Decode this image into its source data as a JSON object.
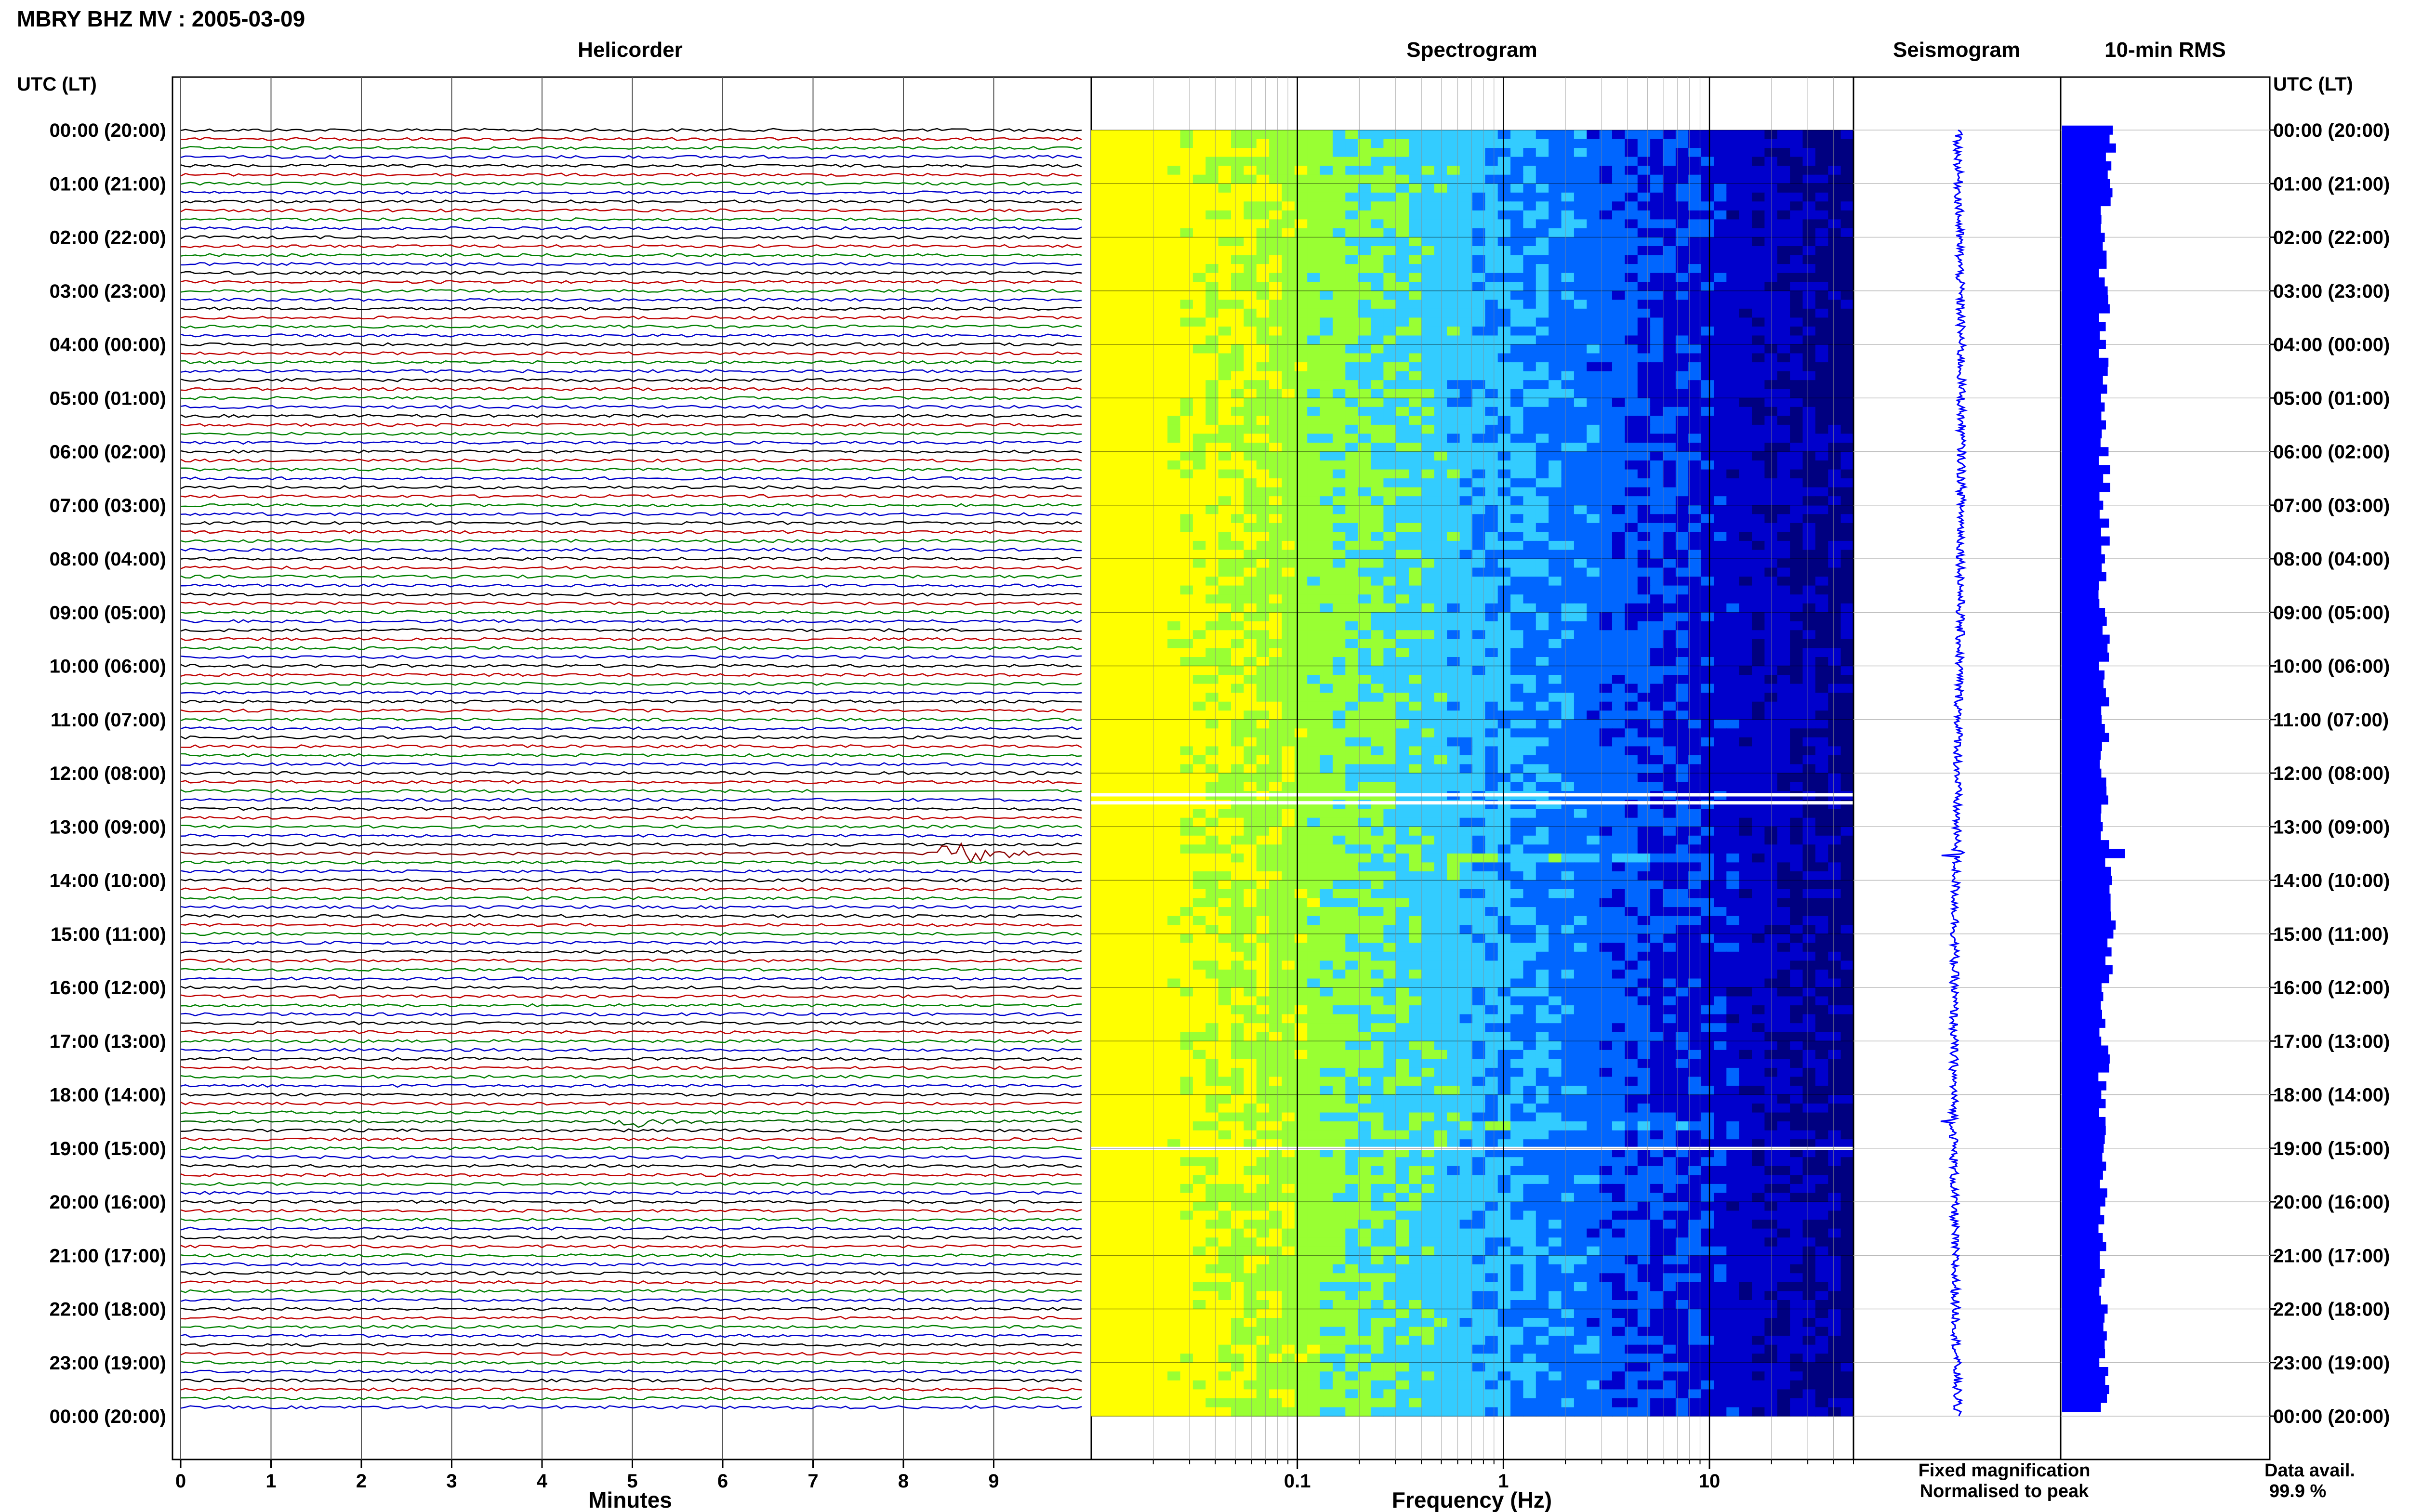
{
  "chart_data": {
    "type": "helicorder",
    "title": "MBRY BHZ MV : 2005-03-09",
    "left_axis_label": "UTC (LT)",
    "right_axis_label": "UTC (LT)",
    "time_ticks": [
      "00:00 (20:00)",
      "01:00 (21:00)",
      "02:00 (22:00)",
      "03:00 (23:00)",
      "04:00 (00:00)",
      "05:00 (01:00)",
      "06:00 (02:00)",
      "07:00 (03:00)",
      "08:00 (04:00)",
      "09:00 (05:00)",
      "10:00 (06:00)",
      "11:00 (07:00)",
      "12:00 (08:00)",
      "13:00 (09:00)",
      "14:00 (10:00)",
      "15:00 (11:00)",
      "16:00 (12:00)",
      "17:00 (13:00)",
      "18:00 (14:00)",
      "19:00 (15:00)",
      "20:00 (16:00)",
      "21:00 (17:00)",
      "22:00 (18:00)",
      "23:00 (19:00)",
      "00:00 (20:00)"
    ],
    "helicorder": {
      "title": "Helicorder",
      "xlabel": "Minutes",
      "x_ticks": [
        "0",
        "1",
        "2",
        "3",
        "4",
        "5",
        "6",
        "7",
        "8",
        "9"
      ],
      "xlim": [
        0,
        10
      ],
      "trace_colors": [
        "#000000",
        "#c00000",
        "#008000",
        "#0000cc"
      ],
      "events": [
        {
          "hour": 13.5,
          "minute": 8.6,
          "width_min": 1.1,
          "amplitude": 4.5,
          "color": "#8b0000"
        },
        {
          "hour": 18.5,
          "minute": 5.0,
          "width_min": 0.9,
          "amplitude": 2.2,
          "color": "#006400"
        }
      ],
      "gaps": [
        {
          "hour": 12.33,
          "minute_start": 7.0,
          "minute_end": 9.5
        }
      ]
    },
    "spectrogram": {
      "title": "Spectrogram",
      "xlabel": "Frequency (Hz)",
      "x_ticks": [
        "0.1",
        "1",
        "10"
      ],
      "scale": "log",
      "xlim": [
        0.01,
        50
      ],
      "colormap": [
        "#ffff00",
        "#99ff33",
        "#33ccff",
        "#0066ff",
        "#0000cc",
        "#000080"
      ],
      "gaps": [
        12.4,
        12.55,
        19.0
      ]
    },
    "seismogram": {
      "title": "Seismogram",
      "color": "#0000ff",
      "events": [
        {
          "hour": 13.5,
          "amplitude": 3.0
        },
        {
          "hour": 18.5,
          "amplitude": 1.5
        }
      ]
    },
    "rms": {
      "title": "10-min RMS",
      "color": "#0000ff",
      "baseline": 1.0,
      "peak_hour": 13.5
    },
    "legend": {
      "fixed": "Fixed magnification",
      "fixed_color": "#0000ff",
      "normalised": "Normalised to peak",
      "normalised_color": "#ff0000"
    },
    "data_avail_label": "Data avail.",
    "data_avail_value": "99.9 %"
  }
}
